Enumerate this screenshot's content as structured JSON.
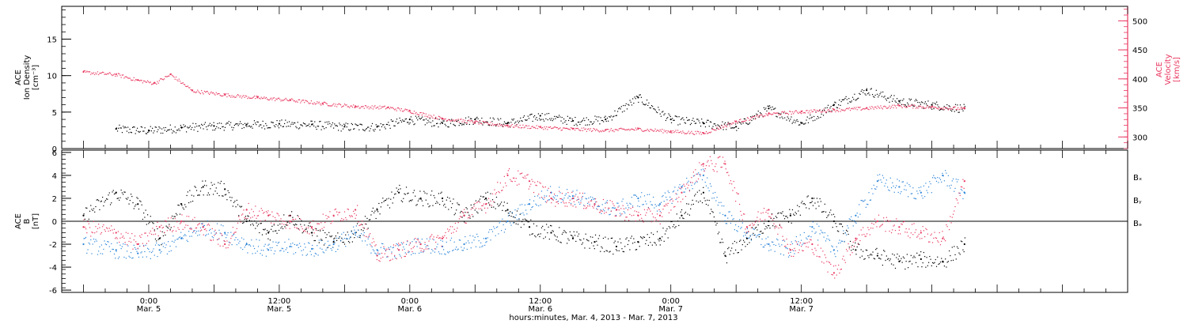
{
  "chart_data": [
    {
      "type": "scatter",
      "panel": "top",
      "ylabel_lines": [
        "ACE",
        "Ion Density",
        "[cm⁻³]"
      ],
      "ylabel_color": "#000000",
      "ylim": [
        0,
        19.5
      ],
      "yticks": [
        0,
        5,
        10,
        15
      ],
      "right_axis": {
        "ylabel_lines": [
          "ACE",
          "Velocity",
          "[km/s]"
        ],
        "color": "#e8365e",
        "ylim": [
          280,
          525
        ],
        "yticks": [
          300,
          350,
          400,
          450,
          500
        ]
      },
      "series": [
        {
          "color": "#000000",
          "axis": "left",
          "scatter": 0.6,
          "x": [
            -3,
            0,
            3,
            6,
            9,
            12,
            15,
            18,
            21,
            24,
            27,
            30,
            33,
            36,
            39,
            42,
            45,
            48,
            51,
            54,
            57,
            60,
            63,
            66,
            69,
            72,
            75
          ],
          "y": [
            2.7,
            2.5,
            2.9,
            3.1,
            3.3,
            3.4,
            3.3,
            3.0,
            3.0,
            4.0,
            3.5,
            4.0,
            3.5,
            4.5,
            3.8,
            4.0,
            7.0,
            4.0,
            3.5,
            3.0,
            5.5,
            3.5,
            6.0,
            8.0,
            6.5,
            6.0,
            5.5
          ]
        },
        {
          "color": "#e8365e",
          "axis": "right",
          "scatter": 3,
          "x": [
            -6,
            -3,
            -1,
            0.5,
            2,
            4,
            7,
            10,
            13,
            16,
            19,
            22,
            24,
            27,
            30,
            33,
            36,
            39,
            42,
            45,
            48,
            51,
            54,
            57,
            60,
            63,
            66,
            69,
            72,
            75
          ],
          "y": [
            412,
            408,
            398,
            393,
            408,
            380,
            373,
            368,
            364,
            358,
            353,
            351,
            345,
            332,
            326,
            320,
            317,
            314,
            312,
            314,
            310,
            307,
            327,
            340,
            344,
            347,
            350,
            354,
            352,
            349
          ]
        }
      ]
    },
    {
      "type": "scatter",
      "panel": "bottom",
      "ylabel_lines": [
        "ACE",
        "B",
        "[nT]"
      ],
      "ylabel_color": "#000000",
      "ylim": [
        -6.2,
        6.2
      ],
      "yticks": [
        -6,
        -4,
        -2,
        0,
        2,
        4,
        6
      ],
      "zero_line": true,
      "legend": "right",
      "series": [
        {
          "name": "Bₓ",
          "color": "#000000",
          "scatter": 0.7,
          "x": [
            -6,
            -3,
            -1,
            1,
            3,
            5,
            7,
            9,
            11,
            13,
            15,
            17,
            19,
            21,
            23,
            25,
            27,
            29,
            31,
            33,
            35,
            37,
            39,
            41,
            43,
            45,
            47,
            49,
            51,
            53,
            55,
            57,
            59,
            61,
            63,
            65,
            67,
            69,
            71,
            73,
            75
          ],
          "y": [
            0.5,
            2.5,
            1.5,
            -1.5,
            1.5,
            3.0,
            2.8,
            0.0,
            -1.0,
            0.5,
            -1.0,
            -1.8,
            -1.0,
            1.0,
            2.5,
            2.0,
            2.0,
            0.5,
            2.0,
            1.0,
            -0.5,
            -1.0,
            -1.5,
            -1.8,
            -2.2,
            -1.8,
            -1.5,
            0.5,
            2.5,
            -3.0,
            -1.5,
            0.0,
            0.5,
            2.0,
            0.0,
            -2.5,
            -3.0,
            -3.5,
            -3.3,
            -3.5,
            -2.0
          ]
        },
        {
          "name": "Bᵧ",
          "color": "#2a84d8",
          "scatter": 0.7,
          "x": [
            -6,
            -3,
            -1,
            1,
            3,
            5,
            7,
            9,
            11,
            13,
            15,
            17,
            19,
            21,
            23,
            25,
            27,
            29,
            31,
            33,
            35,
            37,
            39,
            41,
            43,
            45,
            47,
            49,
            51,
            53,
            55,
            57,
            59,
            61,
            63,
            65,
            67,
            69,
            71,
            73,
            75
          ],
          "y": [
            -2.0,
            -2.5,
            -2.8,
            -2.5,
            -1.5,
            -0.5,
            -1.0,
            -2.0,
            -2.5,
            -2.2,
            -2.4,
            -2.0,
            -1.0,
            -2.5,
            -2.5,
            -2.0,
            -2.2,
            -2.0,
            -1.5,
            0.0,
            1.5,
            2.5,
            2.2,
            1.5,
            1.0,
            2.0,
            1.5,
            3.0,
            4.0,
            0.5,
            -1.0,
            -2.0,
            -2.5,
            -0.5,
            -2.5,
            0.5,
            3.5,
            3.0,
            2.5,
            4.0,
            2.5
          ]
        },
        {
          "name": "Bₔ",
          "color": "#e8365e",
          "scatter": 0.7,
          "x": [
            -6,
            -3,
            -1,
            1,
            3,
            5,
            7,
            9,
            11,
            13,
            15,
            17,
            19,
            21,
            23,
            25,
            27,
            29,
            31,
            33,
            35,
            37,
            39,
            41,
            43,
            45,
            47,
            49,
            51,
            53,
            55,
            57,
            59,
            61,
            63,
            65,
            67,
            69,
            71,
            73,
            75
          ],
          "y": [
            -0.5,
            -1.0,
            -2.0,
            -0.5,
            0.0,
            -0.5,
            -2.0,
            1.0,
            0.5,
            0.0,
            -0.5,
            0.5,
            1.0,
            -3.0,
            -2.5,
            -2.0,
            -1.5,
            0.5,
            1.5,
            4.0,
            3.5,
            2.0,
            2.0,
            1.5,
            1.0,
            0.5,
            0.5,
            2.5,
            5.0,
            5.0,
            -0.5,
            1.0,
            -2.5,
            -2.0,
            -4.5,
            -1.5,
            0.0,
            -0.5,
            -1.0,
            -1.5,
            3.5
          ]
        }
      ]
    }
  ],
  "x_axis": {
    "range_hours": [
      -8,
      90
    ],
    "ticks": [
      {
        "x": 0,
        "line1": "0:00",
        "line2": "Mar. 5"
      },
      {
        "x": 12,
        "line1": "12:00",
        "line2": "Mar. 5"
      },
      {
        "x": 24,
        "line1": "0:00",
        "line2": "Mar. 6"
      },
      {
        "x": 36,
        "line1": "12:00",
        "line2": "Mar. 6"
      },
      {
        "x": 48,
        "line1": "0:00",
        "line2": "Mar. 7"
      },
      {
        "x": 60,
        "line1": "12:00",
        "line2": "Mar. 7"
      }
    ],
    "xlabel": "hours:minutes, Mar.  4, 2013 - Mar.  7, 2013"
  }
}
